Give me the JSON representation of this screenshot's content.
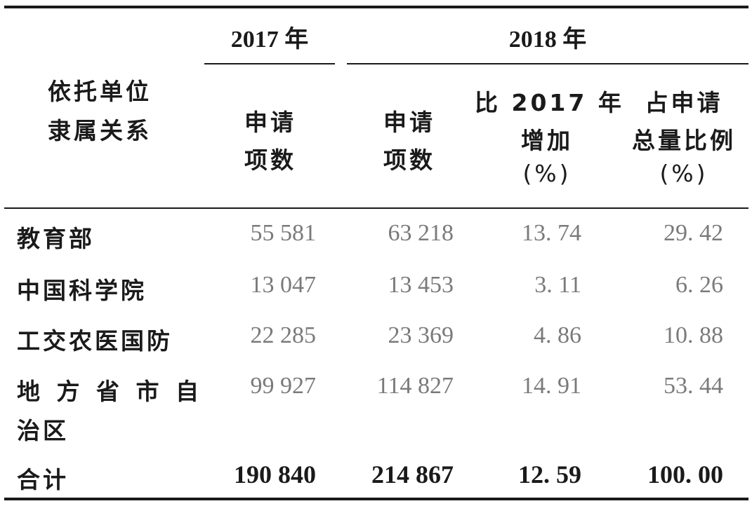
{
  "header": {
    "year_2017": "2017 年",
    "year_2018": "2018 年",
    "row_header_line1": "依托单位",
    "row_header_line2": "隶属关系",
    "col_2017_apps_line1": "申请",
    "col_2017_apps_line2": "项数",
    "col_2018_apps_line1": "申请",
    "col_2018_apps_line2": "项数",
    "col_increase_line1": "比 2017 年",
    "col_increase_line2": "增加",
    "col_increase_line3": "(%)",
    "col_share_line1": "占申请",
    "col_share_line2": "总量比例",
    "col_share_line3": "(%)"
  },
  "rows": [
    {
      "label": "教育部",
      "apps_2017": "55 581",
      "apps_2018": "63 218",
      "increase": "13. 74",
      "share": "29. 42"
    },
    {
      "label": "中国科学院",
      "apps_2017": "13 047",
      "apps_2018": "13 453",
      "increase": "3. 11",
      "share": "6. 26"
    },
    {
      "label": "工交农医国防",
      "apps_2017": "22 285",
      "apps_2018": "23 369",
      "increase": "4. 86",
      "share": "10. 88"
    },
    {
      "label_line1": "地 方 省 市 自",
      "label_line2": "治区",
      "apps_2017": "99 927",
      "apps_2018": "114 827",
      "increase": "14. 91",
      "share": "53. 44"
    }
  ],
  "total": {
    "label": "合计",
    "apps_2017": "190 840",
    "apps_2018": "214 867",
    "increase": "12. 59",
    "share": "100. 00"
  }
}
